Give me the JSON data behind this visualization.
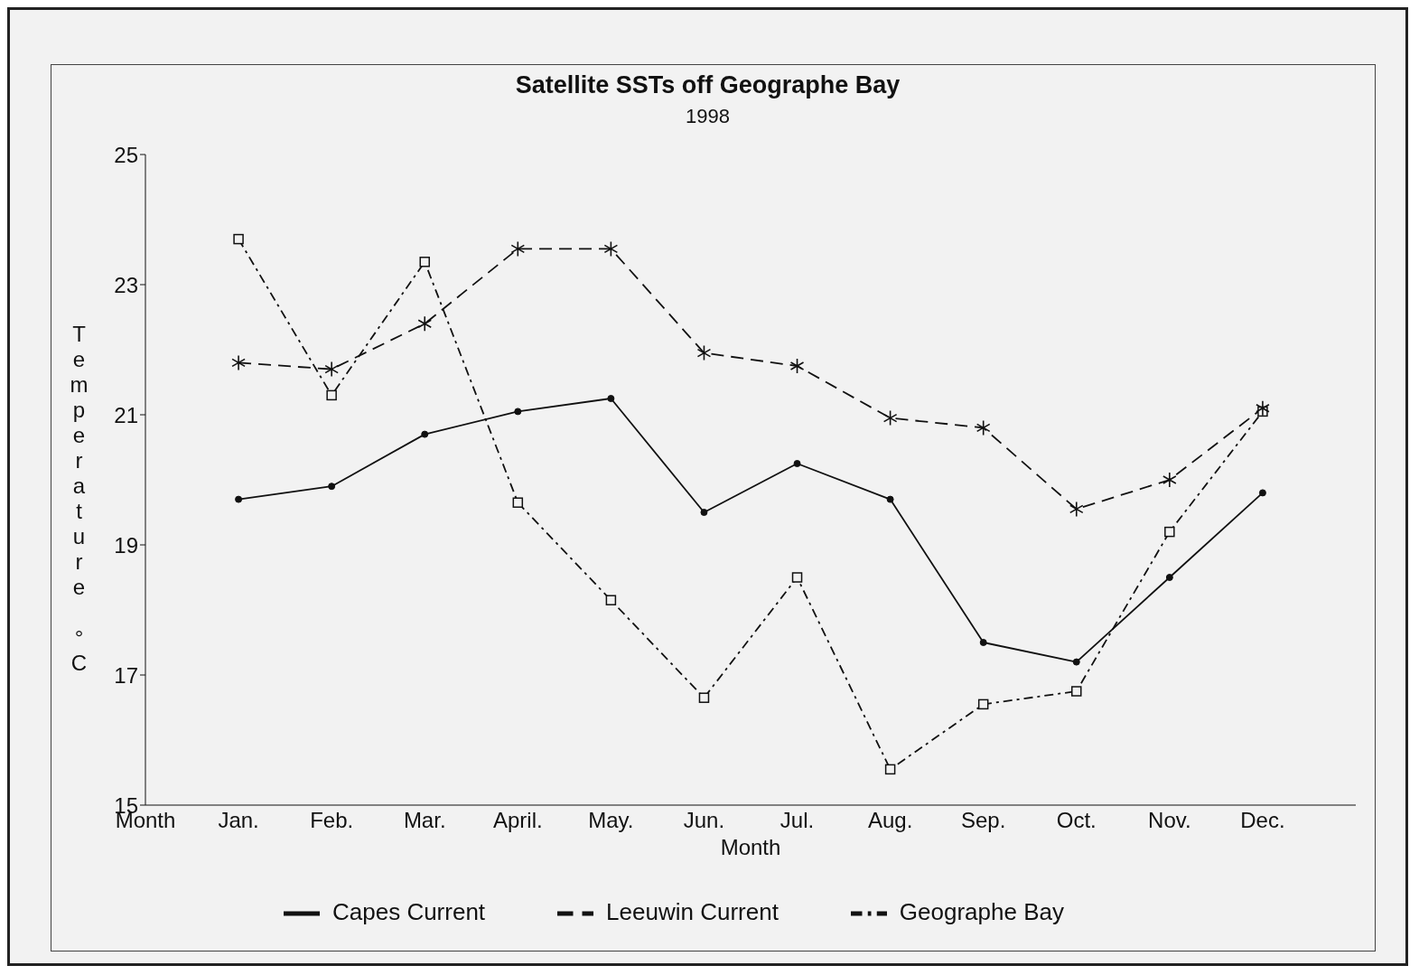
{
  "chart_data": {
    "type": "line",
    "title": "Satellite SSTs off Geographe Bay",
    "subtitle": "1998",
    "xlabel": "Month",
    "ylabel": "Temperature °C",
    "categories": [
      "Month",
      "Jan.",
      "Feb.",
      "Mar.",
      "April.",
      "May.",
      "Jun.",
      "Jul.",
      "Aug.",
      "Sep.",
      "Oct.",
      "Nov.",
      "Dec."
    ],
    "series": [
      {
        "name": "Capes Current",
        "color": "#111111",
        "marker": "circle",
        "line_style": "solid",
        "values": [
          null,
          19.7,
          19.9,
          20.7,
          21.05,
          21.25,
          19.5,
          20.25,
          19.7,
          17.5,
          17.2,
          18.5,
          19.8
        ]
      },
      {
        "name": "Leeuwin Current",
        "color": "#111111",
        "marker": "cross",
        "line_style": "dashed",
        "values": [
          null,
          21.8,
          21.7,
          22.4,
          23.55,
          23.55,
          21.95,
          21.75,
          20.95,
          20.8,
          19.55,
          20.0,
          21.1
        ]
      },
      {
        "name": "Geographe Bay",
        "color": "#111111",
        "marker": "square",
        "line_style": "dashdot",
        "values": [
          null,
          23.7,
          21.3,
          23.35,
          19.65,
          18.15,
          16.65,
          18.5,
          15.55,
          16.55,
          16.75,
          19.2,
          21.05
        ]
      }
    ],
    "ylim": [
      15,
      25
    ],
    "yticks": [
      15,
      17,
      19,
      21,
      23,
      25
    ],
    "legend": "bottom"
  }
}
